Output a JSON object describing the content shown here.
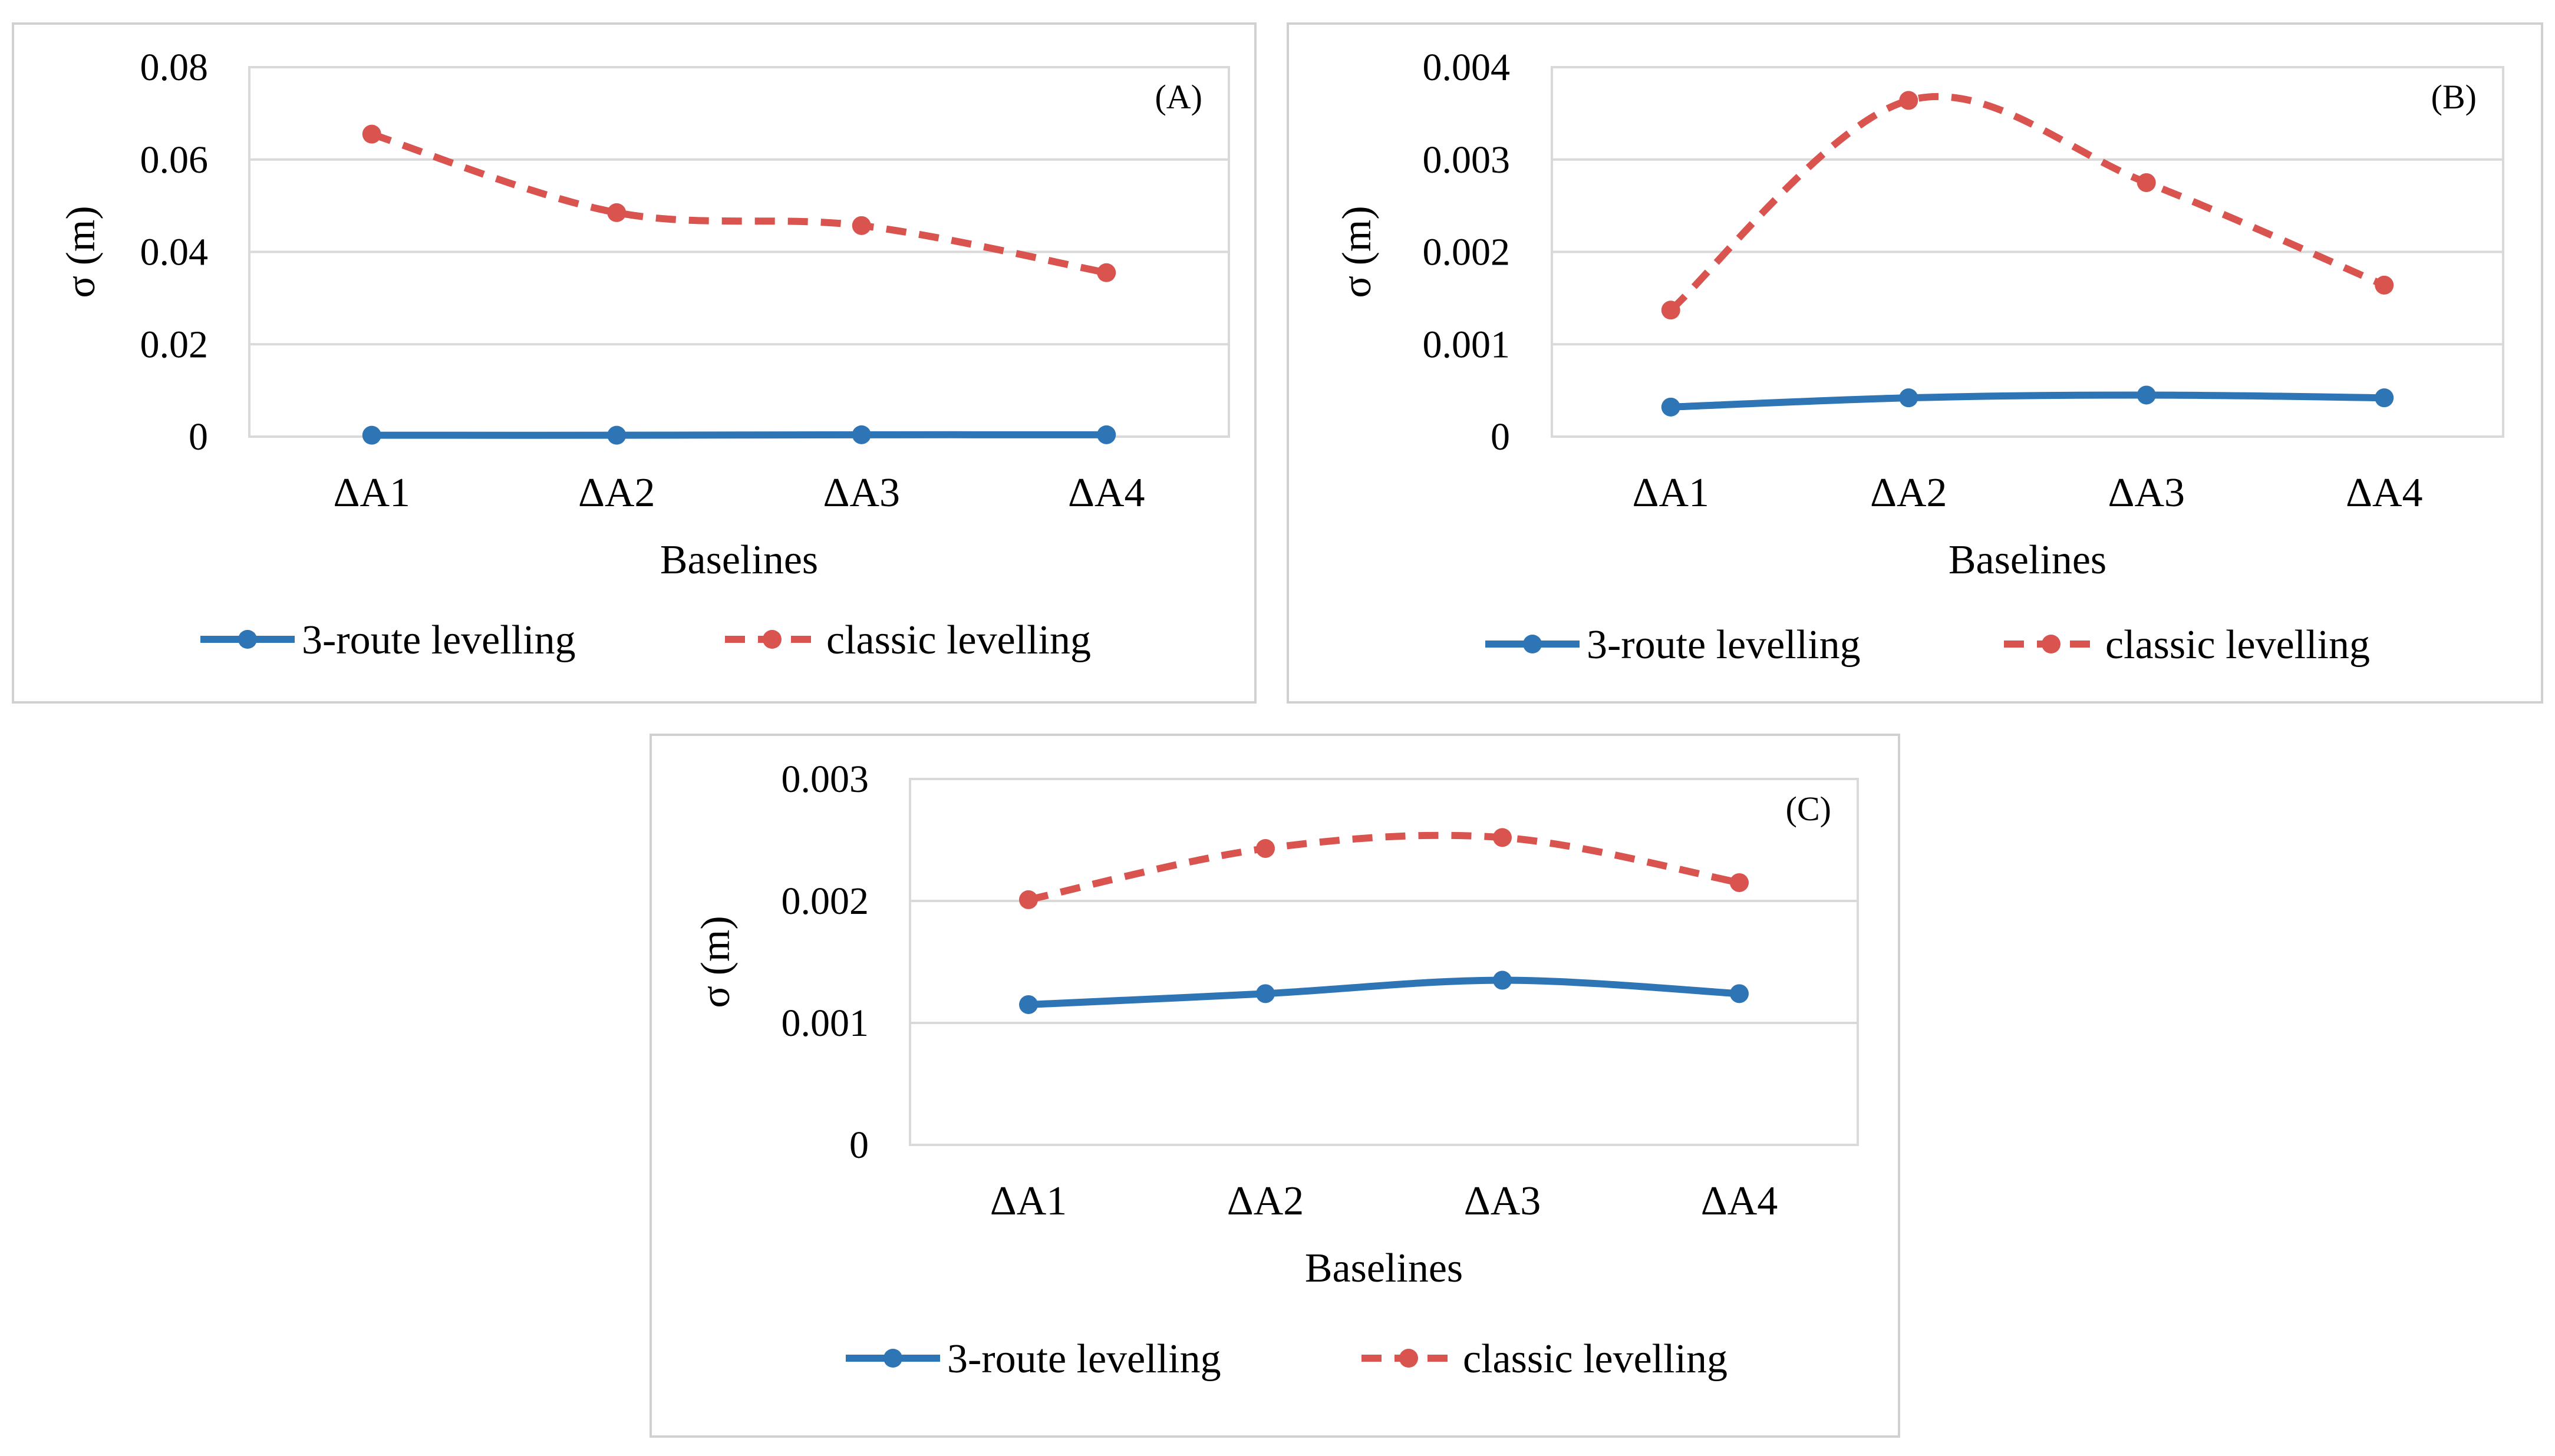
{
  "chart_data": [
    {
      "type": "line",
      "panel_label": "(A)",
      "categories": [
        "ΔA1",
        "ΔA2",
        "ΔA3",
        "ΔA4"
      ],
      "xlabel": "Baselines",
      "ylabel": "σ (m)",
      "ylim": [
        0,
        0.08
      ],
      "yticks": [
        0,
        0.02,
        0.04,
        0.06,
        0.08
      ],
      "ytick_labels": [
        "0",
        "0.02",
        "0.04",
        "0.06",
        "0.08"
      ],
      "grid": true,
      "legend_position": "bottom",
      "series": [
        {
          "name": "3-route levelling",
          "style": "solid",
          "color": "#2E75B6",
          "values": [
            0.0003,
            0.0003,
            0.0004,
            0.0004
          ]
        },
        {
          "name": "classic levelling",
          "style": "dashed",
          "color": "#D9534F",
          "values": [
            0.0655,
            0.0485,
            0.0457,
            0.0355
          ]
        }
      ]
    },
    {
      "type": "line",
      "panel_label": "(B)",
      "categories": [
        "ΔA1",
        "ΔA2",
        "ΔA3",
        "ΔA4"
      ],
      "xlabel": "Baselines",
      "ylabel": "σ (m)",
      "ylim": [
        0,
        0.004
      ],
      "yticks": [
        0,
        0.001,
        0.002,
        0.003,
        0.004
      ],
      "ytick_labels": [
        "0",
        "0.001",
        "0.002",
        "0.003",
        "0.004"
      ],
      "grid": true,
      "legend_position": "bottom",
      "series": [
        {
          "name": "3-route levelling",
          "style": "solid",
          "color": "#2E75B6",
          "values": [
            0.00032,
            0.00042,
            0.00045,
            0.00042
          ]
        },
        {
          "name": "classic levelling",
          "style": "dashed",
          "color": "#D9534F",
          "values": [
            0.00137,
            0.00364,
            0.00275,
            0.00164
          ]
        }
      ]
    },
    {
      "type": "line",
      "panel_label": "(C)",
      "categories": [
        "ΔA1",
        "ΔA2",
        "ΔA3",
        "ΔA4"
      ],
      "xlabel": "Baselines",
      "ylabel": "σ (m)",
      "ylim": [
        0,
        0.003
      ],
      "yticks": [
        0,
        0.001,
        0.002,
        0.003
      ],
      "ytick_labels": [
        "0",
        "0.001",
        "0.002",
        "0.003"
      ],
      "grid": true,
      "legend_position": "bottom",
      "series": [
        {
          "name": "3-route levelling",
          "style": "solid",
          "color": "#2E75B6",
          "values": [
            0.00115,
            0.00124,
            0.00135,
            0.00124
          ]
        },
        {
          "name": "classic levelling",
          "style": "dashed",
          "color": "#D9534F",
          "values": [
            0.00201,
            0.00243,
            0.00252,
            0.00215
          ]
        }
      ]
    }
  ]
}
